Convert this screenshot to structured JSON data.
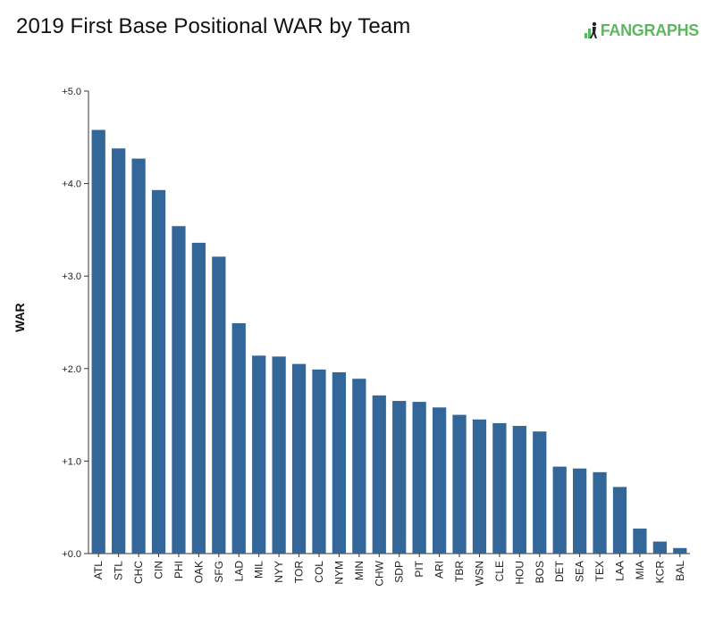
{
  "header": {
    "title": "2019 First Base Positional WAR by Team",
    "logo_text": "FANGRAPHS",
    "logo_colors": {
      "primary": "#5cb85c"
    }
  },
  "chart_data": {
    "type": "bar",
    "title": "2019 First Base Positional WAR by Team",
    "xlabel": "",
    "ylabel": "WAR",
    "ylim": [
      0,
      5
    ],
    "yticks": [
      "+0.0",
      "+1.0",
      "+2.0",
      "+3.0",
      "+4.0",
      "+5.0"
    ],
    "ytick_values": [
      0,
      1,
      2,
      3,
      4,
      5
    ],
    "grid": false,
    "bar_color": "#336699",
    "categories": [
      "ATL",
      "STL",
      "CHC",
      "CIN",
      "PHI",
      "OAK",
      "SFG",
      "LAD",
      "MIL",
      "NYY",
      "TOR",
      "COL",
      "NYM",
      "MIN",
      "CHW",
      "SDP",
      "PIT",
      "ARI",
      "TBR",
      "WSN",
      "CLE",
      "HOU",
      "BOS",
      "DET",
      "SEA",
      "TEX",
      "LAA",
      "MIA",
      "KCR",
      "BAL"
    ],
    "values": [
      4.58,
      4.38,
      4.27,
      3.93,
      3.54,
      3.36,
      3.21,
      2.49,
      2.14,
      2.13,
      2.05,
      1.99,
      1.96,
      1.89,
      1.71,
      1.65,
      1.64,
      1.58,
      1.5,
      1.45,
      1.41,
      1.38,
      1.32,
      0.94,
      0.92,
      0.88,
      0.72,
      0.27,
      0.13,
      0.06
    ]
  }
}
